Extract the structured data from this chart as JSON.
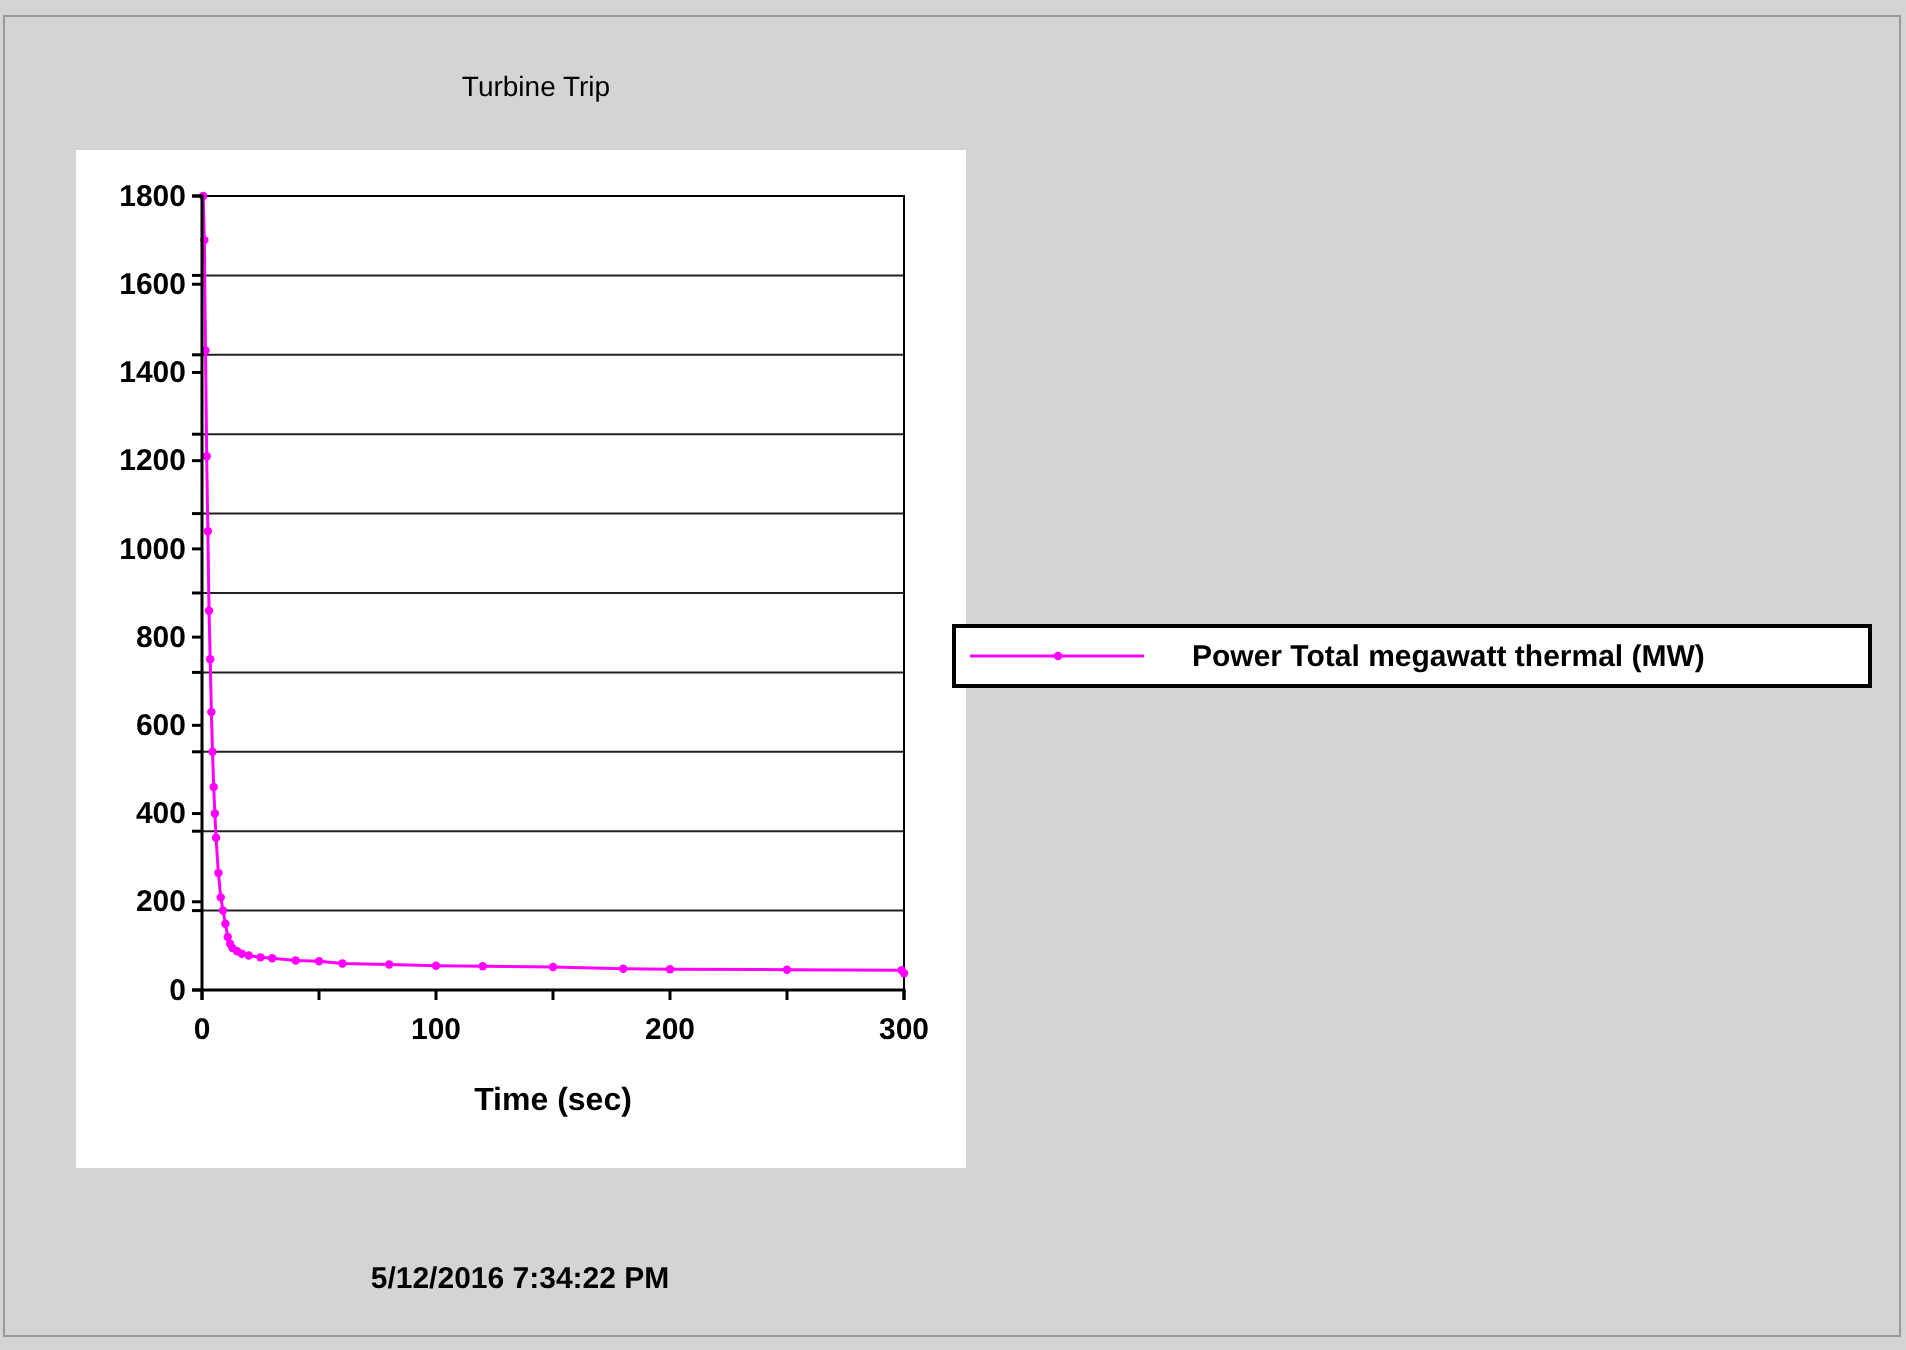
{
  "chart_data": {
    "type": "line",
    "title": "Turbine Trip",
    "xlabel": "Time (sec)",
    "x": [
      0.5,
      1,
      1.5,
      2,
      2.5,
      3,
      3.5,
      4,
      4.5,
      5,
      5.5,
      6,
      7,
      8,
      9,
      10,
      11,
      12,
      13,
      15,
      17,
      20,
      25,
      30,
      40,
      50,
      60,
      80,
      100,
      120,
      150,
      180,
      200,
      250,
      299,
      300
    ],
    "series": [
      {
        "name": "Power Total megawatt thermal (MW)",
        "color": "#ff00ff",
        "values": [
          1800,
          1700,
          1450,
          1210,
          1040,
          860,
          750,
          630,
          540,
          460,
          400,
          345,
          265,
          210,
          180,
          150,
          120,
          105,
          95,
          88,
          82,
          78,
          74,
          72,
          67,
          65,
          60,
          58,
          55,
          54,
          52,
          48,
          47,
          46,
          45,
          38
        ]
      }
    ],
    "xlim": [
      0,
      300
    ],
    "ylim": [
      0,
      1800
    ],
    "xticks": [
      0,
      {
        "value": 50,
        "label": null
      },
      100,
      {
        "value": 150,
        "label": null
      },
      200,
      {
        "value": 250,
        "label": null
      },
      300
    ],
    "yticks": [
      0,
      200,
      400,
      600,
      800,
      1000,
      1200,
      1400,
      1600,
      1800,
      {
        "value": 180,
        "label": null
      },
      {
        "value": 360,
        "label": null
      },
      {
        "value": 540,
        "label": null
      },
      {
        "value": 720,
        "label": null
      },
      {
        "value": 900,
        "label": null
      },
      {
        "value": 1080,
        "label": null
      },
      {
        "value": 1260,
        "label": null
      },
      {
        "value": 1440,
        "label": null
      },
      {
        "value": 1620,
        "label": null
      }
    ],
    "grid": "y",
    "legend": "right",
    "marker": "circle",
    "line_style": "solid",
    "annotations": [
      "5/12/2016 7:34:22 PM"
    ]
  }
}
